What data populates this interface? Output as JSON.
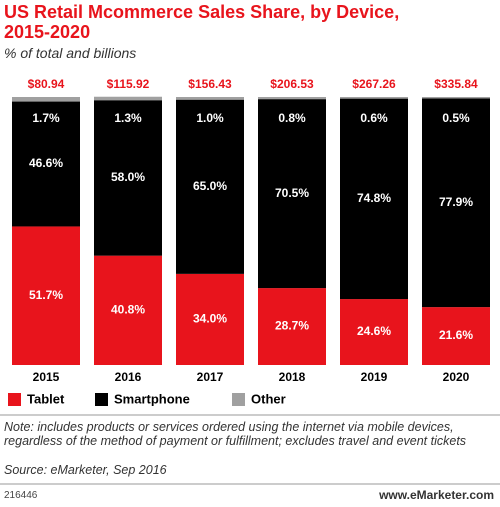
{
  "chart_data": {
    "type": "stacked_bar",
    "title": "US Retail Mcommerce Sales Share, by Device, 2015-2020",
    "subtitle": "% of total and billions",
    "categories": [
      "2015",
      "2016",
      "2017",
      "2018",
      "2019",
      "2020"
    ],
    "ylim": [
      0,
      100
    ],
    "series": [
      {
        "name": "Tablet",
        "color": "#e8141c",
        "values": [
          51.7,
          40.8,
          34.0,
          28.7,
          24.6,
          21.6
        ],
        "value_labels": [
          "51.7%",
          "40.8%",
          "34.0%",
          "28.7%",
          "24.6%",
          "21.6%"
        ]
      },
      {
        "name": "Smartphone",
        "color": "#000000",
        "values": [
          46.6,
          58.0,
          65.0,
          70.5,
          74.8,
          77.9
        ],
        "value_labels": [
          "46.6%",
          "58.0%",
          "65.0%",
          "70.5%",
          "74.8%",
          "77.9%"
        ]
      },
      {
        "name": "Other",
        "color": "#a0a0a0",
        "values": [
          1.7,
          1.3,
          1.0,
          0.8,
          0.6,
          0.5
        ],
        "value_labels": [
          "1.7%",
          "1.3%",
          "1.0%",
          "0.8%",
          "0.6%",
          "0.5%"
        ]
      }
    ],
    "totals": {
      "values": [
        80.94,
        115.92,
        156.43,
        206.53,
        267.26,
        335.84
      ],
      "value_labels": [
        "$80.94",
        "$115.92",
        "$156.43",
        "$206.53",
        "$267.26",
        "$335.84"
      ],
      "color": "#e8141c"
    },
    "note": "Note: includes products or services ordered using the internet via mobile devices, regardless of the method of payment or fulfillment; excludes travel and event tickets",
    "source": "Source: eMarketer, Sep 2016",
    "chart_id": "216446",
    "website": "www.eMarketer.com"
  }
}
